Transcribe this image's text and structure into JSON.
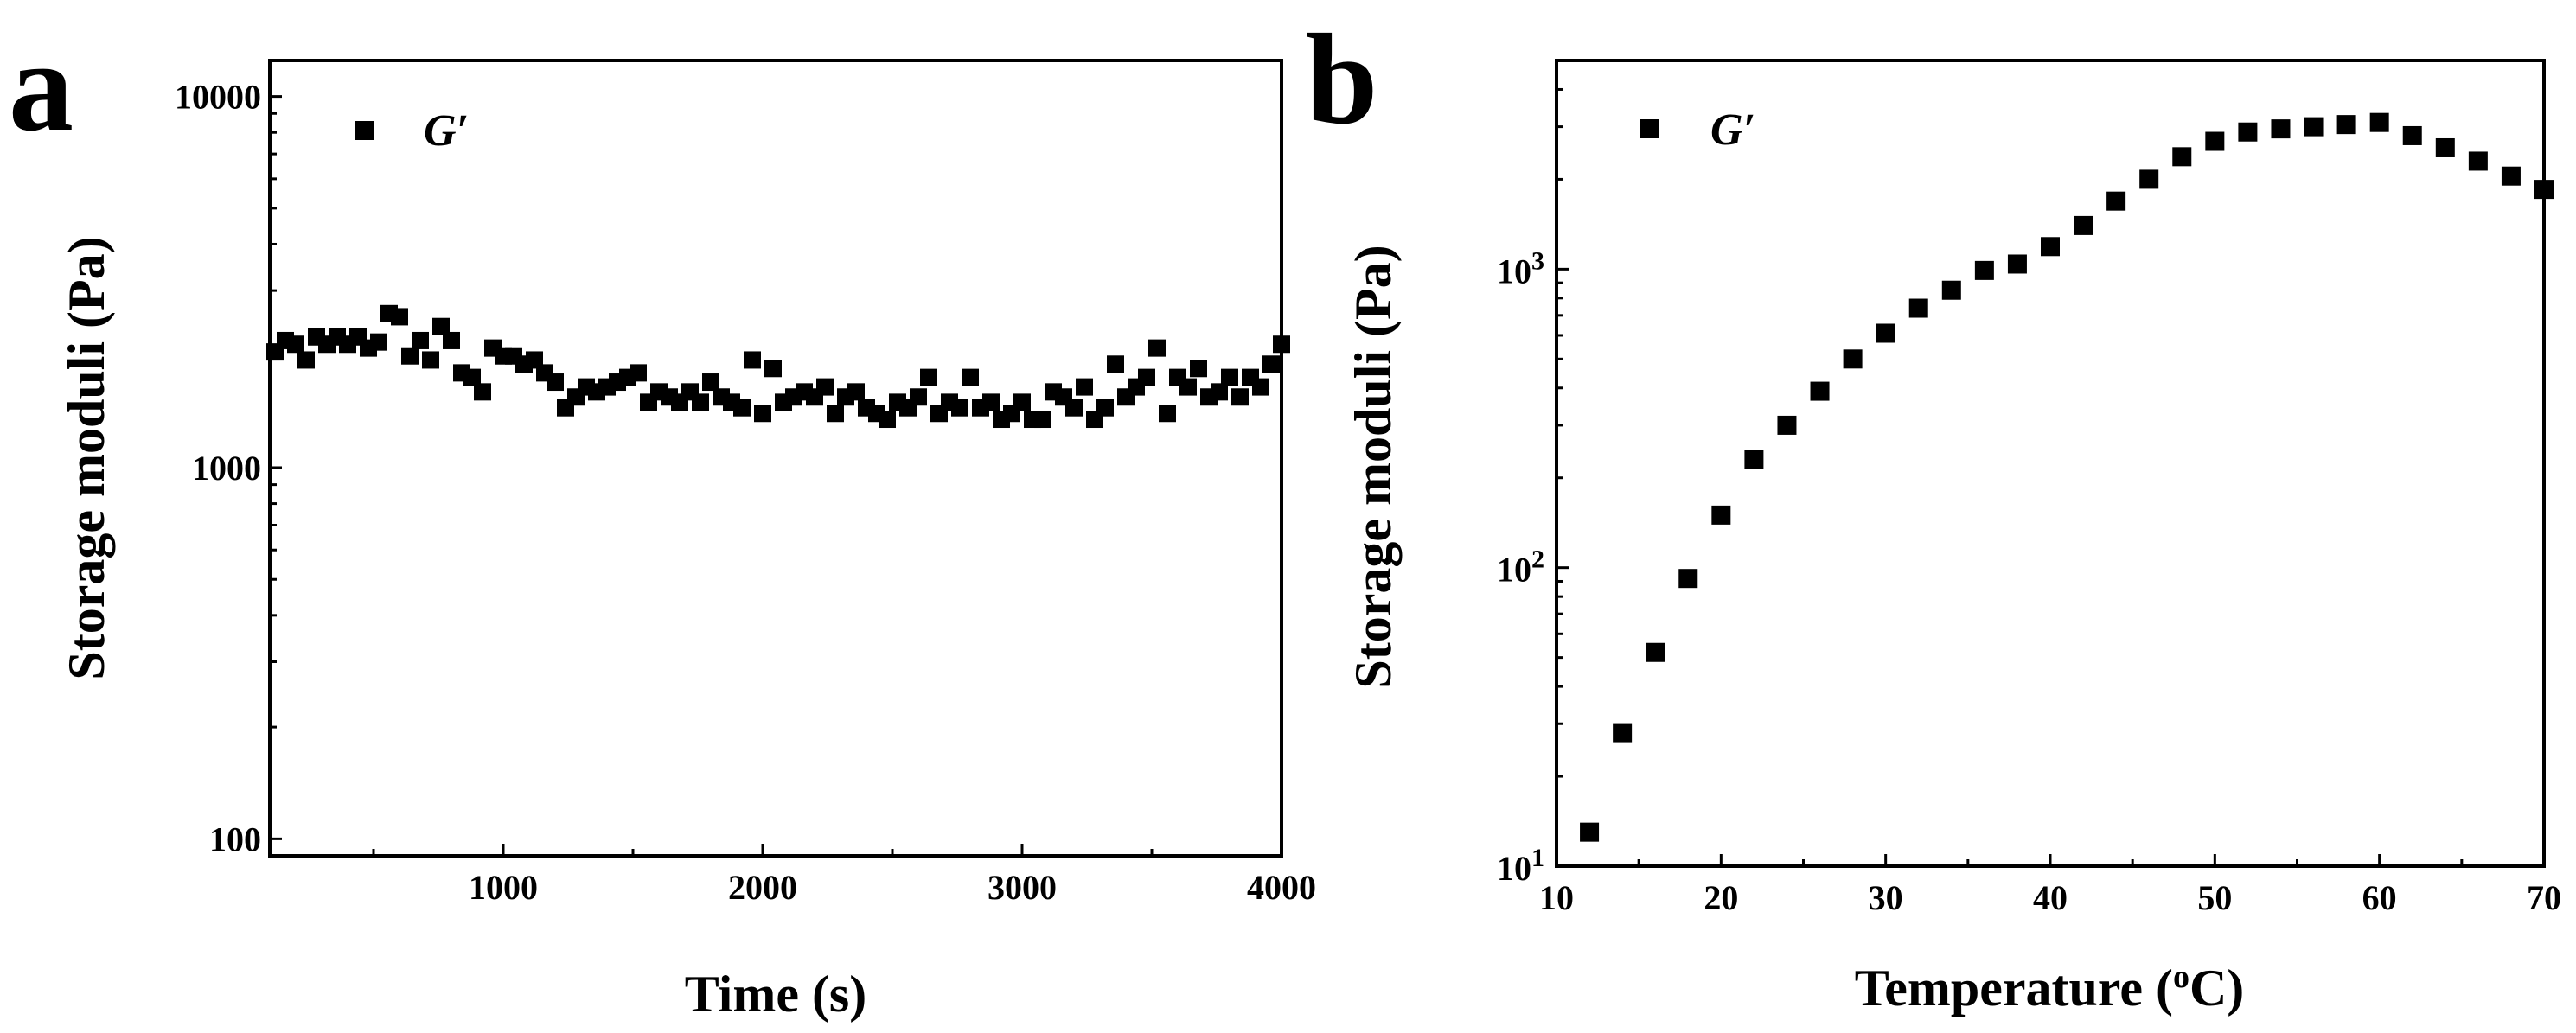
{
  "figure": {
    "panels": [
      {
        "letter": "a"
      },
      {
        "letter": "b"
      }
    ]
  },
  "chart_data": [
    {
      "type": "scatter",
      "panel": "a",
      "title": "",
      "xlabel": "Time (s)",
      "ylabel": "Storage moduli (Pa)",
      "xlim": [
        100,
        4000
      ],
      "ylim": [
        90,
        12500
      ],
      "yscale": "log",
      "xticks": [
        1000,
        2000,
        3000,
        4000
      ],
      "xtick_labels": [
        "1000",
        "2000",
        "3000",
        "4000"
      ],
      "yticks": [
        100,
        1000,
        10000
      ],
      "ytick_labels": [
        "100",
        "1000",
        "10000"
      ],
      "legend": {
        "label": "G′",
        "position": "top-left"
      },
      "series": [
        {
          "name": "G′",
          "x": [
            120,
            160,
            200,
            240,
            280,
            320,
            360,
            400,
            440,
            480,
            520,
            560,
            600,
            640,
            680,
            720,
            760,
            800,
            840,
            880,
            920,
            960,
            1000,
            1040,
            1080,
            1120,
            1160,
            1200,
            1240,
            1280,
            1320,
            1360,
            1400,
            1440,
            1480,
            1520,
            1560,
            1600,
            1640,
            1680,
            1720,
            1760,
            1800,
            1840,
            1880,
            1920,
            1960,
            2000,
            2040,
            2080,
            2120,
            2160,
            2200,
            2240,
            2280,
            2320,
            2360,
            2400,
            2440,
            2480,
            2520,
            2560,
            2600,
            2640,
            2680,
            2720,
            2760,
            2800,
            2840,
            2880,
            2920,
            2960,
            3000,
            3040,
            3080,
            3120,
            3160,
            3200,
            3240,
            3280,
            3320,
            3360,
            3400,
            3440,
            3480,
            3520,
            3560,
            3600,
            3640,
            3680,
            3720,
            3760,
            3800,
            3840,
            3880,
            3920,
            3960,
            4000
          ],
          "y": [
            2050,
            2200,
            2150,
            1950,
            2250,
            2150,
            2250,
            2150,
            2250,
            2100,
            2180,
            2600,
            2550,
            2000,
            2200,
            1950,
            2400,
            2200,
            1800,
            1750,
            1600,
            2100,
            2000,
            2000,
            1900,
            1950,
            1800,
            1700,
            1450,
            1550,
            1650,
            1600,
            1650,
            1700,
            1750,
            1800,
            1500,
            1600,
            1550,
            1500,
            1600,
            1500,
            1700,
            1550,
            1500,
            1450,
            1950,
            1400,
            1850,
            1500,
            1550,
            1600,
            1550,
            1650,
            1400,
            1550,
            1600,
            1450,
            1400,
            1350,
            1500,
            1450,
            1550,
            1750,
            1400,
            1500,
            1450,
            1750,
            1450,
            1500,
            1350,
            1400,
            1500,
            1350,
            1350,
            1600,
            1550,
            1450,
            1650,
            1350,
            1450,
            1900,
            1550,
            1650,
            1750,
            2100,
            1400,
            1750,
            1650,
            1850,
            1550,
            1600,
            1750,
            1550,
            1750,
            1650,
            1900,
            2150
          ]
        }
      ]
    },
    {
      "type": "scatter",
      "panel": "b",
      "title": "",
      "xlabel": "Temperature (°C)",
      "xlabel_parts": {
        "before": "Temperature (",
        "superscript": "o",
        "after": "C)"
      },
      "ylabel": "Storage moduli (Pa)",
      "xlim": [
        10,
        70
      ],
      "ylim": [
        10,
        5000
      ],
      "yscale": "log",
      "xticks": [
        10,
        20,
        30,
        40,
        50,
        60,
        70
      ],
      "xtick_labels": [
        "10",
        "20",
        "30",
        "40",
        "50",
        "60",
        "70"
      ],
      "yticks": [
        10,
        100,
        1000
      ],
      "ytick_labels": [
        {
          "base": "10",
          "exp": "1"
        },
        {
          "base": "10",
          "exp": "2"
        },
        {
          "base": "10",
          "exp": "3"
        }
      ],
      "legend": {
        "label": "G′",
        "position": "top-left"
      },
      "series": [
        {
          "name": "G′",
          "x": [
            12,
            14,
            16,
            18,
            20,
            22,
            24,
            26,
            28,
            30,
            32,
            34,
            36,
            38,
            40,
            42,
            44,
            46,
            48,
            50,
            52,
            54,
            56,
            58,
            60,
            62,
            64,
            66,
            68,
            70
          ],
          "y": [
            13,
            28,
            52,
            92,
            150,
            230,
            300,
            390,
            500,
            610,
            740,
            850,
            990,
            1040,
            1190,
            1400,
            1690,
            2000,
            2380,
            2680,
            2880,
            2950,
            3000,
            3050,
            3100,
            2800,
            2550,
            2300,
            2050,
            1850
          ]
        }
      ]
    }
  ]
}
